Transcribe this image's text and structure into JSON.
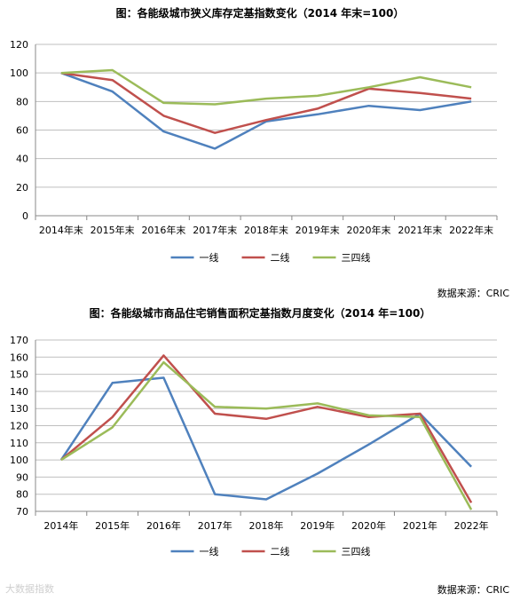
{
  "chart_data": [
    {
      "type": "line",
      "title": "图：各能级城市狭义库存定基指数变化（2014 年末=100）",
      "categories": [
        "2014年末",
        "2015年末",
        "2016年末",
        "2017年末",
        "2018年末",
        "2019年末",
        "2020年末",
        "2021年末",
        "2022年末"
      ],
      "series": [
        {
          "name": "一线",
          "color": "#4f81bd",
          "values": [
            100,
            87,
            59,
            47,
            66,
            71,
            77,
            74,
            80
          ]
        },
        {
          "name": "二线",
          "color": "#c0504d",
          "values": [
            100,
            95,
            70,
            58,
            67,
            75,
            89,
            86,
            82
          ]
        },
        {
          "name": "三四线",
          "color": "#9bbb59",
          "values": [
            100,
            102,
            79,
            78,
            82,
            84,
            90,
            97,
            90
          ]
        }
      ],
      "ylim": [
        0,
        120
      ],
      "yticks": [
        0,
        20,
        40,
        60,
        80,
        100,
        120
      ],
      "grid": true,
      "legend": "bottom",
      "source": "数据来源：CRIC"
    },
    {
      "type": "line",
      "title": "图：各能级城市商品住宅销售面积定基指数月度变化（2014 年=100）",
      "categories": [
        "2014年",
        "2015年",
        "2016年",
        "2017年",
        "2018年",
        "2019年",
        "2020年",
        "2021年",
        "2022年"
      ],
      "series": [
        {
          "name": "一线",
          "color": "#4f81bd",
          "values": [
            100,
            145,
            148,
            80,
            77,
            92,
            109,
            127,
            96
          ]
        },
        {
          "name": "二线",
          "color": "#c0504d",
          "values": [
            100,
            125,
            161,
            127,
            124,
            131,
            125,
            127,
            75
          ]
        },
        {
          "name": "三四线",
          "color": "#9bbb59",
          "values": [
            100,
            119,
            157,
            131,
            130,
            133,
            126,
            125,
            71
          ]
        }
      ],
      "ylim": [
        70,
        170
      ],
      "yticks": [
        70,
        80,
        90,
        100,
        110,
        120,
        130,
        140,
        150,
        160,
        170
      ],
      "grid": true,
      "legend": "bottom",
      "source": "数据来源：CRIC"
    }
  ],
  "watermark": "大数据指数"
}
